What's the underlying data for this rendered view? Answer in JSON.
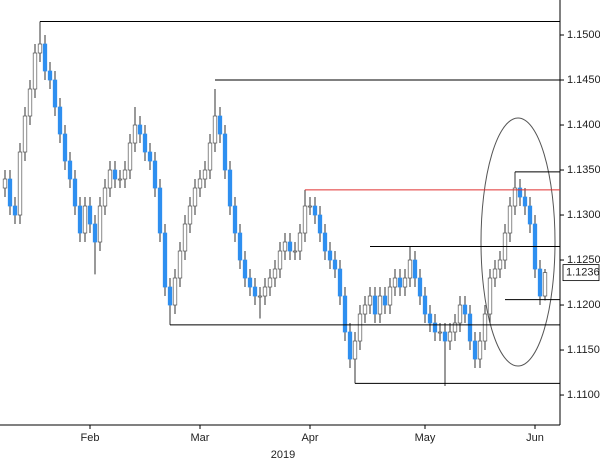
{
  "chart_data": {
    "type": "candlestick",
    "xlabel": "2019",
    "xlim": [
      -1,
      111
    ],
    "xticks": [
      {
        "value": 17,
        "label": "Feb"
      },
      {
        "value": 39,
        "label": "Mar"
      },
      {
        "value": 61,
        "label": "Apr"
      },
      {
        "value": 84,
        "label": "May"
      },
      {
        "value": 106,
        "label": "Jun"
      }
    ],
    "ylim": [
      1.10667,
      1.15389
    ],
    "yticks": [
      {
        "value": 1.11,
        "label": "1.1100"
      },
      {
        "value": 1.115,
        "label": "1.1150"
      },
      {
        "value": 1.12,
        "label": "1.1200"
      },
      {
        "value": 1.125,
        "label": "1.1250"
      },
      {
        "value": 1.13,
        "label": "1.1300"
      },
      {
        "value": 1.135,
        "label": "1.1350"
      },
      {
        "value": 1.14,
        "label": "1.1400"
      },
      {
        "value": 1.145,
        "label": "1.1450"
      },
      {
        "value": 1.15,
        "label": "1.1500"
      }
    ],
    "up_color": "#ffffff",
    "down_color": "#2e8ff0",
    "open": [
      1.133,
      1.134,
      1.131,
      1.13,
      1.137,
      1.141,
      1.144,
      1.148,
      1.149,
      1.146,
      1.145,
      1.142,
      1.139,
      1.136,
      1.134,
      1.131,
      1.128,
      1.131,
      1.129,
      1.127,
      1.131,
      1.133,
      1.135,
      1.134,
      1.134,
      1.135,
      1.138,
      1.14,
      1.139,
      1.137,
      1.136,
      1.133,
      1.128,
      1.122,
      1.12,
      1.123,
      1.126,
      1.129,
      1.131,
      1.133,
      1.134,
      1.135,
      1.138,
      1.141,
      1.139,
      1.135,
      1.131,
      1.128,
      1.125,
      1.123,
      1.122,
      1.121,
      1.121,
      1.122,
      1.123,
      1.124,
      1.126,
      1.127,
      1.126,
      1.126,
      1.128,
      1.131,
      1.131,
      1.13,
      1.128,
      1.126,
      1.125,
      1.124,
      1.121,
      1.117,
      1.114,
      1.116,
      1.119,
      1.12,
      1.121,
      1.119,
      1.121,
      1.12,
      1.122,
      1.123,
      1.122,
      1.123,
      1.125,
      1.123,
      1.121,
      1.119,
      1.118,
      1.117,
      1.117,
      1.116,
      1.117,
      1.118,
      1.12,
      1.119,
      1.116,
      1.114,
      1.116,
      1.119,
      1.123,
      1.124,
      1.125,
      1.128,
      1.131,
      1.133,
      1.132,
      1.131,
      1.129,
      1.124,
      1.121
    ],
    "high": [
      1.135,
      1.135,
      1.132,
      1.138,
      1.142,
      1.145,
      1.149,
      1.1515,
      1.15,
      1.147,
      1.146,
      1.143,
      1.14,
      1.137,
      1.135,
      1.132,
      1.132,
      1.132,
      1.13,
      1.132,
      1.134,
      1.136,
      1.136,
      1.135,
      1.136,
      1.139,
      1.142,
      1.141,
      1.14,
      1.138,
      1.137,
      1.134,
      1.129,
      1.123,
      1.124,
      1.127,
      1.13,
      1.132,
      1.134,
      1.135,
      1.136,
      1.139,
      1.144,
      1.142,
      1.14,
      1.136,
      1.132,
      1.129,
      1.126,
      1.124,
      1.123,
      1.122,
      1.123,
      1.124,
      1.125,
      1.127,
      1.128,
      1.128,
      1.127,
      1.129,
      1.1328,
      1.132,
      1.132,
      1.131,
      1.129,
      1.127,
      1.126,
      1.125,
      1.122,
      1.118,
      1.117,
      1.12,
      1.121,
      1.122,
      1.122,
      1.122,
      1.122,
      1.123,
      1.124,
      1.124,
      1.124,
      1.1265,
      1.126,
      1.124,
      1.122,
      1.12,
      1.119,
      1.118,
      1.118,
      1.118,
      1.119,
      1.121,
      1.121,
      1.12,
      1.117,
      1.117,
      1.12,
      1.124,
      1.125,
      1.126,
      1.129,
      1.132,
      1.1348,
      1.134,
      1.133,
      1.132,
      1.13,
      1.125,
      1.124
    ],
    "low": [
      1.132,
      1.13,
      1.129,
      1.129,
      1.136,
      1.14,
      1.143,
      1.147,
      1.145,
      1.144,
      1.141,
      1.138,
      1.135,
      1.133,
      1.13,
      1.127,
      1.127,
      1.128,
      1.1234,
      1.126,
      1.13,
      1.132,
      1.133,
      1.133,
      1.133,
      1.134,
      1.137,
      1.138,
      1.136,
      1.135,
      1.132,
      1.127,
      1.121,
      1.1178,
      1.119,
      1.122,
      1.125,
      1.128,
      1.13,
      1.132,
      1.133,
      1.134,
      1.137,
      1.138,
      1.134,
      1.13,
      1.127,
      1.124,
      1.122,
      1.121,
      1.12,
      1.1185,
      1.12,
      1.121,
      1.122,
      1.123,
      1.125,
      1.125,
      1.125,
      1.125,
      1.127,
      1.13,
      1.129,
      1.127,
      1.125,
      1.124,
      1.123,
      1.12,
      1.116,
      1.113,
      1.1113,
      1.115,
      1.118,
      1.119,
      1.118,
      1.118,
      1.119,
      1.119,
      1.121,
      1.121,
      1.121,
      1.122,
      1.122,
      1.12,
      1.118,
      1.117,
      1.116,
      1.116,
      1.111,
      1.115,
      1.116,
      1.117,
      1.118,
      1.115,
      1.113,
      1.113,
      1.115,
      1.118,
      1.122,
      1.123,
      1.124,
      1.127,
      1.13,
      1.131,
      1.13,
      1.128,
      1.123,
      1.12,
      1.1205
    ],
    "close": [
      1.134,
      1.131,
      1.13,
      1.137,
      1.141,
      1.144,
      1.148,
      1.149,
      1.146,
      1.145,
      1.142,
      1.139,
      1.136,
      1.134,
      1.131,
      1.128,
      1.131,
      1.129,
      1.127,
      1.131,
      1.133,
      1.135,
      1.134,
      1.134,
      1.135,
      1.138,
      1.14,
      1.139,
      1.137,
      1.136,
      1.133,
      1.128,
      1.122,
      1.12,
      1.123,
      1.126,
      1.129,
      1.131,
      1.133,
      1.134,
      1.135,
      1.138,
      1.141,
      1.139,
      1.135,
      1.131,
      1.128,
      1.125,
      1.123,
      1.122,
      1.121,
      1.121,
      1.122,
      1.123,
      1.124,
      1.126,
      1.127,
      1.126,
      1.126,
      1.128,
      1.131,
      1.131,
      1.13,
      1.128,
      1.126,
      1.125,
      1.124,
      1.121,
      1.117,
      1.114,
      1.116,
      1.119,
      1.12,
      1.121,
      1.119,
      1.121,
      1.12,
      1.122,
      1.123,
      1.122,
      1.123,
      1.125,
      1.123,
      1.121,
      1.119,
      1.118,
      1.117,
      1.117,
      1.116,
      1.117,
      1.118,
      1.12,
      1.119,
      1.116,
      1.114,
      1.116,
      1.119,
      1.123,
      1.124,
      1.125,
      1.128,
      1.131,
      1.133,
      1.132,
      1.131,
      1.129,
      1.124,
      1.121,
      1.1236
    ],
    "levels": [
      {
        "value": 1.1515,
        "start": 7,
        "color": "#000000"
      },
      {
        "value": 1.145,
        "start": 42,
        "color": "#000000"
      },
      {
        "value": 1.1348,
        "start": 102,
        "color": "#000000"
      },
      {
        "value": 1.1328,
        "start": 60,
        "color": "#e03030"
      },
      {
        "value": 1.1265,
        "start": 73,
        "color": "#000000"
      },
      {
        "value": 1.1206,
        "start": 100,
        "color": "#000000"
      },
      {
        "value": 1.1178,
        "start": 33,
        "color": "#000000"
      },
      {
        "value": 1.1113,
        "start": 70,
        "color": "#000000"
      }
    ],
    "last_price": {
      "value": 1.1236,
      "label": "1.1236"
    }
  }
}
